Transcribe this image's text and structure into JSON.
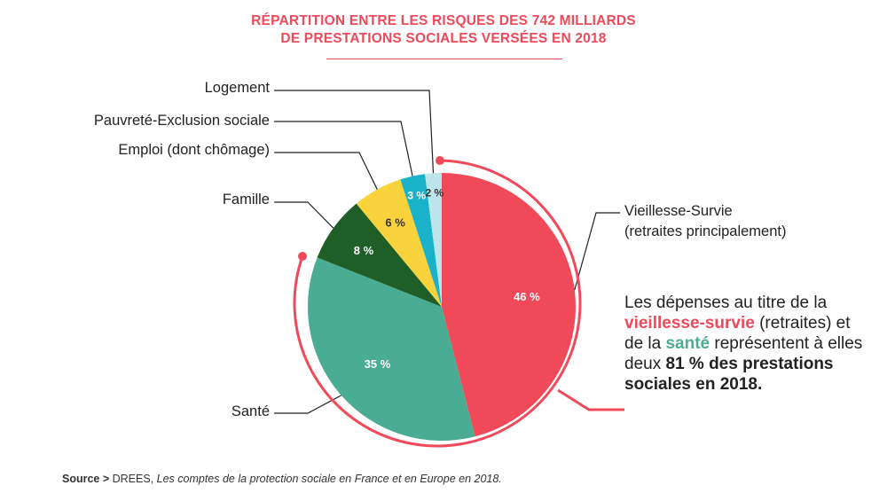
{
  "title_line1": "RÉPARTITION ENTRE LES RISQUES DES 742 MILLIARDS",
  "title_line2": "DE PRESTATIONS SOCIALES VERSÉES EN 2018",
  "chart_data": {
    "type": "pie",
    "title": "RÉPARTITION ENTRE LES RISQUES DES 742 MILLIARDS DE PRESTATIONS SOCIALES VERSÉES EN 2018",
    "slices": [
      {
        "key": "vieillesse",
        "label_line1": "Vieillesse-Survie",
        "label_line2": "(retraites principalement)",
        "value": 46,
        "value_label": "46 %",
        "color": "#f0495a"
      },
      {
        "key": "sante",
        "label": "Santé",
        "value": 35,
        "value_label": "35 %",
        "color": "#4aac93"
      },
      {
        "key": "famille",
        "label": "Famille",
        "value": 8,
        "value_label": "8 %",
        "color": "#1f5e27"
      },
      {
        "key": "emploi",
        "label": "Emploi (dont chômage)",
        "value": 6,
        "value_label": "6 %",
        "color": "#f9d33b"
      },
      {
        "key": "pauvrete",
        "label": "Pauvreté-Exclusion sociale",
        "value": 3,
        "value_label": "3 %",
        "color": "#1ab2c8"
      },
      {
        "key": "logement",
        "label": "Logement",
        "value": 2,
        "value_label": "2 %",
        "color": "#bfe5ec"
      }
    ]
  },
  "callout": {
    "p1": "Les dépenses au titre de la ",
    "hl1": "vieillesse-survie",
    "p2": " (retraites) et de la ",
    "hl2": "santé",
    "p3": " représentent à elles deux ",
    "bold": "81 % des prestations sociales en 2018."
  },
  "source": {
    "prefix": "Source > ",
    "org": "DREES, ",
    "title": "Les comptes de la protection sociale en France et en Europe en 2018."
  }
}
